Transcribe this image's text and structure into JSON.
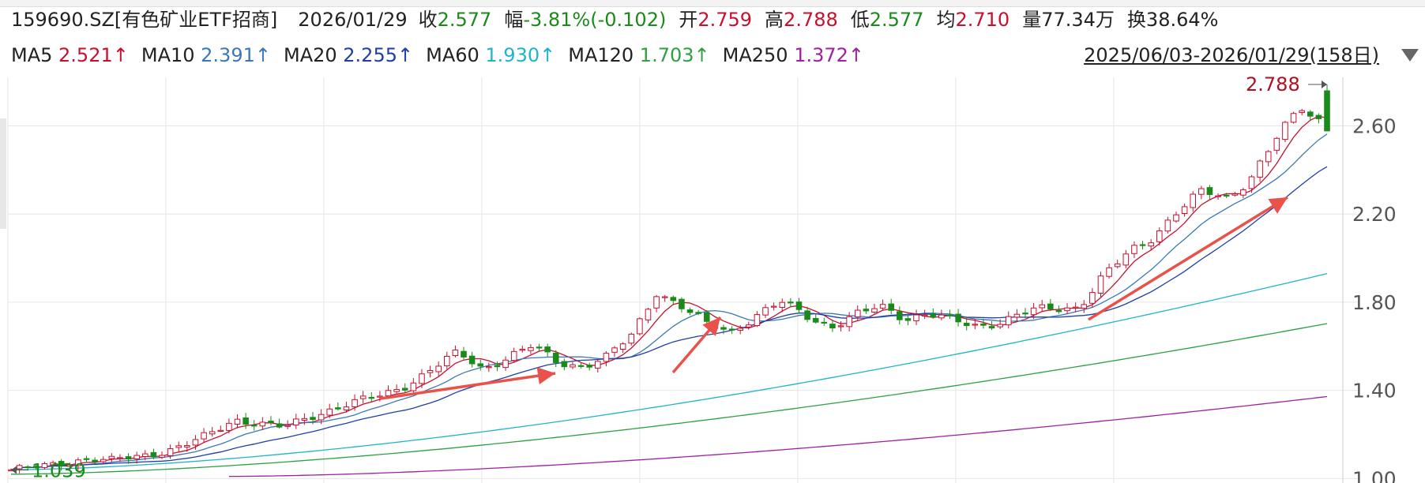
{
  "header": {
    "symbol": "159690.SZ[有色矿业ETF招商]",
    "date": "2026/01/29",
    "quotes": [
      {
        "label": "收",
        "value": "2.577",
        "color": "#1a8a1a"
      },
      {
        "label": "幅",
        "value": "-3.81%(-0.102)",
        "color": "#1a8a1a"
      },
      {
        "label": "开",
        "value": "2.759",
        "color": "#c8102e"
      },
      {
        "label": "高",
        "value": "2.788",
        "color": "#c8102e"
      },
      {
        "label": "低",
        "value": "2.577",
        "color": "#1a8a1a"
      },
      {
        "label": "均",
        "value": "2.710",
        "color": "#c8102e"
      },
      {
        "label": "量",
        "value": "77.34万",
        "color": "#222222"
      },
      {
        "label": "换",
        "value": "38.64%",
        "color": "#222222"
      }
    ],
    "ma": [
      {
        "label": "MA5",
        "value": "2.521↑",
        "color": "#c8102e"
      },
      {
        "label": "MA10",
        "value": "2.391↑",
        "color": "#3c78b4"
      },
      {
        "label": "MA20",
        "value": "2.255↑",
        "color": "#1f3fa6"
      },
      {
        "label": "MA60",
        "value": "1.930↑",
        "color": "#1fb5c8"
      },
      {
        "label": "MA120",
        "value": "1.703↑",
        "color": "#2ea043"
      },
      {
        "label": "MA250",
        "value": "1.372↑",
        "color": "#a020a0"
      }
    ],
    "range": "2025/06/03-2026/01/29(158日)"
  },
  "chart_data": {
    "type": "candlestick",
    "yticks": [
      "2.60",
      "2.20",
      "1.80",
      "1.40",
      "1.00"
    ],
    "ylim": [
      0.98,
      2.82
    ],
    "period_days": 158,
    "high_label": "2.788",
    "low_label": "1.039",
    "colors": {
      "up": "#c8102e",
      "down": "#1a8a1a",
      "annotation_arrow": "#e8524a"
    },
    "trend": [
      1.04,
      1.05,
      1.07,
      1.09,
      1.08,
      1.1,
      1.12,
      1.15,
      1.2,
      1.27,
      1.25,
      1.23,
      1.28,
      1.32,
      1.35,
      1.38,
      1.43,
      1.5,
      1.57,
      1.5,
      1.55,
      1.6,
      1.53,
      1.51,
      1.55,
      1.65,
      1.85,
      1.78,
      1.7,
      1.67,
      1.74,
      1.8,
      1.74,
      1.69,
      1.74,
      1.78,
      1.73,
      1.75,
      1.71,
      1.69,
      1.72,
      1.76,
      1.77,
      1.78,
      1.92,
      2.02,
      2.1,
      2.22,
      2.3,
      2.27,
      2.38,
      2.55,
      2.68,
      2.6
    ],
    "last_bar": {
      "open": 2.759,
      "high": 2.788,
      "low": 2.577,
      "close": 2.577
    },
    "ma_end": {
      "MA5": 2.521,
      "MA10": 2.391,
      "MA20": 2.255,
      "MA60": 1.93,
      "MA120": 1.703,
      "MA250": 1.372
    }
  }
}
